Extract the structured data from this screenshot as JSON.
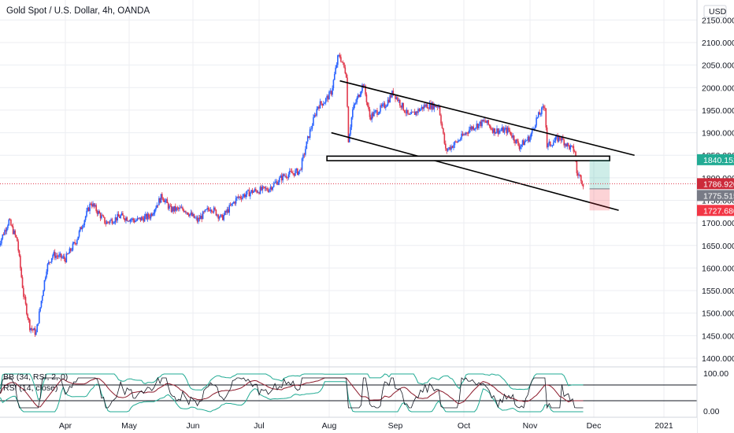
{
  "header": {
    "title": "Gold Spot / U.S. Dollar, 4h, OANDA"
  },
  "axis": {
    "currency": "USD"
  },
  "colors": {
    "up": "#2962ff",
    "down": "#e0364a",
    "grid": "#eceef2",
    "green_tag": "#22ab94",
    "red_tag": "#f23645",
    "dark_red_tag": "#cc2a3a",
    "gray_tag": "#787b86",
    "bb": "#22ab94",
    "rsi": "#131722",
    "basis": "#8b1a2b"
  },
  "tags": [
    {
      "value": "1840.152",
      "color_key": "green_tag"
    },
    {
      "value": "1786.920",
      "color_key": "dark_red_tag"
    },
    {
      "value": "1775.515",
      "color_key": "gray_tag"
    },
    {
      "value": "1727.680",
      "color_key": "red_tag"
    }
  ],
  "indicator": {
    "bb_label": "BB (34, RSI, 2, 0)",
    "rsi_label": "RSI (14, close)",
    "ticks": [
      "100.00",
      "0.00"
    ]
  },
  "chart_data": {
    "type": "candlestick",
    "title": "Gold Spot / U.S. Dollar, 4h, OANDA",
    "ylim": [
      1400,
      2150
    ],
    "y_ticks": [
      "2150.000",
      "2100.000",
      "2050.000",
      "2000.000",
      "1950.000",
      "1900.000",
      "1850.000",
      "1800.000",
      "1750.000",
      "1700.000",
      "1650.000",
      "1600.000",
      "1550.000",
      "1500.000",
      "1450.000",
      "1400.000"
    ],
    "x_ticks": [
      "Apr",
      "May",
      "Jun",
      "Jul",
      "Aug",
      "Sep",
      "Oct",
      "Nov",
      "Dec",
      "2021"
    ],
    "price_path": [
      [
        "Mar 01",
        1650
      ],
      [
        "Mar 06",
        1705
      ],
      [
        "Mar 10",
        1660
      ],
      [
        "Mar 13",
        1540
      ],
      [
        "Mar 16",
        1470
      ],
      [
        "Mar 19",
        1455
      ],
      [
        "Mar 24",
        1600
      ],
      [
        "Mar 27",
        1630
      ],
      [
        "Apr 02",
        1620
      ],
      [
        "Apr 07",
        1660
      ],
      [
        "Apr 14",
        1745
      ],
      [
        "Apr 21",
        1700
      ],
      [
        "Apr 28",
        1715
      ],
      [
        "May 05",
        1705
      ],
      [
        "May 12",
        1715
      ],
      [
        "May 18",
        1760
      ],
      [
        "May 22",
        1730
      ],
      [
        "May 29",
        1730
      ],
      [
        "Jun 04",
        1705
      ],
      [
        "Jun 10",
        1735
      ],
      [
        "Jun 15",
        1710
      ],
      [
        "Jun 22",
        1755
      ],
      [
        "Jun 29",
        1770
      ],
      [
        "Jul 06",
        1775
      ],
      [
        "Jul 13",
        1805
      ],
      [
        "Jul 20",
        1815
      ],
      [
        "Jul 24",
        1895
      ],
      [
        "Jul 28",
        1960
      ],
      [
        "Jul 31",
        1970
      ],
      [
        "Aug 03",
        1990
      ],
      [
        "Aug 06",
        2065
      ],
      [
        "Aug 07",
        2070
      ],
      [
        "Aug 10",
        2030
      ],
      [
        "Aug 11",
        1885
      ],
      [
        "Aug 13",
        1950
      ],
      [
        "Aug 18",
        2010
      ],
      [
        "Aug 21",
        1935
      ],
      [
        "Aug 28",
        1960
      ],
      [
        "Sep 01",
        1990
      ],
      [
        "Sep 08",
        1935
      ],
      [
        "Sep 15",
        1960
      ],
      [
        "Sep 21",
        1960
      ],
      [
        "Sep 24",
        1860
      ],
      [
        "Sep 29",
        1880
      ],
      [
        "Oct 05",
        1910
      ],
      [
        "Oct 12",
        1925
      ],
      [
        "Oct 16",
        1905
      ],
      [
        "Oct 23",
        1905
      ],
      [
        "Oct 28",
        1870
      ],
      [
        "Nov 02",
        1890
      ],
      [
        "Nov 05",
        1930
      ],
      [
        "Nov 09",
        1960
      ],
      [
        "Nov 10",
        1870
      ],
      [
        "Nov 16",
        1890
      ],
      [
        "Nov 20",
        1870
      ],
      [
        "Nov 23",
        1860
      ],
      [
        "Nov 24",
        1810
      ],
      [
        "Nov 26",
        1800
      ],
      [
        "Nov 27",
        1786
      ]
    ],
    "drawings": {
      "downtrend_channel_upper": [
        [
          "Aug 07",
          2015
        ],
        [
          "Dec 20",
          1850
        ]
      ],
      "downtrend_channel_lower": [
        [
          "Aug 03",
          1900
        ],
        [
          "Dec 13",
          1728
        ]
      ],
      "resistance_box": [
        1838,
        1848
      ],
      "support_box": [
        1750,
        1760
      ],
      "long_position": {
        "entry": 1775.515,
        "target": 1840.152,
        "stop": 1727.68
      }
    },
    "last_price": 1786.92,
    "indicator_panel": {
      "rsi_ylim": [
        0,
        100
      ],
      "bands": "BB (34, RSI, 2, 0)",
      "rsi": "RSI (14, close)"
    }
  }
}
